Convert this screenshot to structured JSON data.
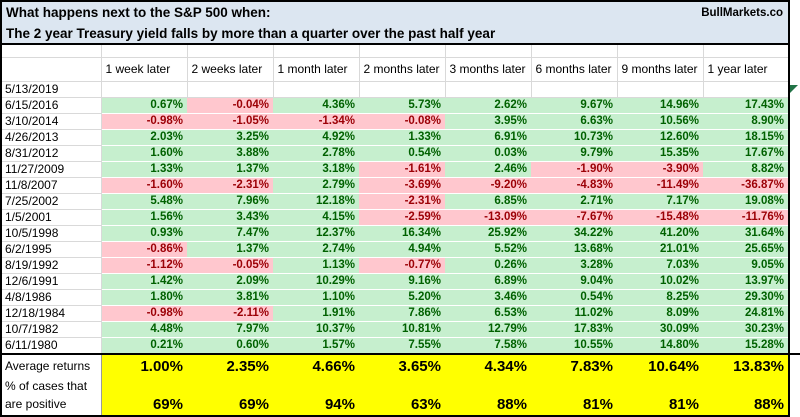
{
  "title": {
    "line1": "What happens next to the S&P 500 when:",
    "line2": "The 2 year Treasury yield falls by more than a quarter over the past half year",
    "brand": "BullMarkets.co"
  },
  "table": {
    "column_headers": [
      "1 week later",
      "2 weeks later",
      "1 month later",
      "2 months later",
      "3 months later",
      "6 months later",
      "9 months later",
      "1 year later"
    ],
    "rows": [
      {
        "date": "5/13/2019",
        "values": [
          "",
          "",
          "",
          "",
          "",
          "",
          "",
          ""
        ]
      },
      {
        "date": "6/15/2016",
        "values": [
          "0.67%",
          "-0.04%",
          "4.36%",
          "5.73%",
          "2.62%",
          "9.67%",
          "14.96%",
          "17.43%"
        ]
      },
      {
        "date": "3/10/2014",
        "values": [
          "-0.98%",
          "-1.05%",
          "-1.34%",
          "-0.08%",
          "3.95%",
          "6.63%",
          "10.56%",
          "8.90%"
        ]
      },
      {
        "date": "4/26/2013",
        "values": [
          "2.03%",
          "3.25%",
          "4.92%",
          "1.33%",
          "6.91%",
          "10.73%",
          "12.60%",
          "18.15%"
        ]
      },
      {
        "date": "8/31/2012",
        "values": [
          "1.60%",
          "3.88%",
          "2.78%",
          "0.54%",
          "0.03%",
          "9.79%",
          "15.35%",
          "17.67%"
        ]
      },
      {
        "date": "11/27/2009",
        "values": [
          "1.33%",
          "1.37%",
          "3.18%",
          "-1.61%",
          "2.46%",
          "-1.90%",
          "-3.90%",
          "8.82%"
        ]
      },
      {
        "date": "11/8/2007",
        "values": [
          "-1.60%",
          "-2.31%",
          "2.79%",
          "-3.69%",
          "-9.20%",
          "-4.83%",
          "-11.49%",
          "-36.87%"
        ]
      },
      {
        "date": "7/25/2002",
        "values": [
          "5.48%",
          "7.96%",
          "12.18%",
          "-2.31%",
          "6.85%",
          "2.71%",
          "7.17%",
          "19.08%"
        ]
      },
      {
        "date": "1/5/2001",
        "values": [
          "1.56%",
          "3.43%",
          "4.15%",
          "-2.59%",
          "-13.09%",
          "-7.67%",
          "-15.48%",
          "-11.76%"
        ]
      },
      {
        "date": "10/5/1998",
        "values": [
          "0.93%",
          "7.47%",
          "12.37%",
          "16.34%",
          "25.92%",
          "34.22%",
          "41.20%",
          "31.64%"
        ]
      },
      {
        "date": "6/2/1995",
        "values": [
          "-0.86%",
          "1.37%",
          "2.74%",
          "4.94%",
          "5.52%",
          "13.68%",
          "21.01%",
          "25.65%"
        ]
      },
      {
        "date": "8/19/1992",
        "values": [
          "-1.12%",
          "-0.05%",
          "1.13%",
          "-0.77%",
          "0.26%",
          "3.28%",
          "7.03%",
          "9.05%"
        ]
      },
      {
        "date": "12/6/1991",
        "values": [
          "1.42%",
          "2.09%",
          "10.29%",
          "9.16%",
          "6.89%",
          "9.04%",
          "10.02%",
          "13.97%"
        ]
      },
      {
        "date": "4/8/1986",
        "values": [
          "1.80%",
          "3.81%",
          "1.10%",
          "5.20%",
          "3.46%",
          "0.54%",
          "8.25%",
          "29.30%"
        ]
      },
      {
        "date": "12/18/1984",
        "values": [
          "-0.98%",
          "-2.11%",
          "1.91%",
          "7.86%",
          "6.53%",
          "11.02%",
          "8.09%",
          "24.81%"
        ]
      },
      {
        "date": "10/7/1982",
        "values": [
          "4.48%",
          "7.97%",
          "10.37%",
          "10.81%",
          "12.79%",
          "17.83%",
          "30.09%",
          "30.23%"
        ]
      },
      {
        "date": "6/11/1980",
        "values": [
          "0.21%",
          "0.60%",
          "1.57%",
          "7.55%",
          "7.58%",
          "10.55%",
          "14.80%",
          "15.28%"
        ]
      }
    ],
    "summary": {
      "avg_label": "Average returns",
      "avg_values": [
        "1.00%",
        "2.35%",
        "4.66%",
        "3.65%",
        "4.34%",
        "7.83%",
        "10.64%",
        "13.83%"
      ],
      "pos_label_line1": "% of cases that",
      "pos_label_line2": "are positive",
      "pos_values": [
        "69%",
        "69%",
        "94%",
        "63%",
        "88%",
        "81%",
        "81%",
        "88%"
      ]
    }
  },
  "icons": {
    "cell_flag": "green-triangle-icon"
  },
  "colors": {
    "positive_bg": "#C6EFCE",
    "positive_text": "#006100",
    "negative_bg": "#FFC7CE",
    "negative_text": "#9C0006",
    "title_bg": "#DCE6F1",
    "summary_bg": "#FFFF00",
    "flag_green": "#217346"
  }
}
